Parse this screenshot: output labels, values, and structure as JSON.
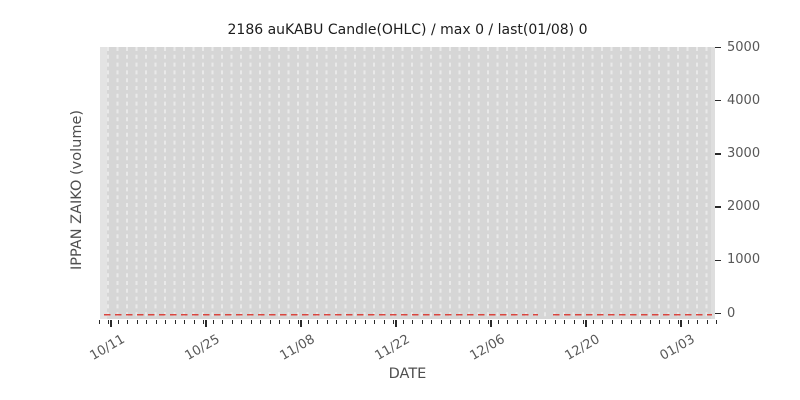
{
  "title": "2186 auKABU Candle(OHLC) / max 0 / last(01/08) 0",
  "axes": {
    "x_label": "DATE",
    "y_label": "IPPAN ZAIKO (volume)",
    "x_tick_labels": [
      "10/11",
      "10/25",
      "11/08",
      "11/22",
      "12/06",
      "12/20",
      "01/03"
    ],
    "y_tick_labels": [
      "0",
      "1000",
      "2000",
      "3000",
      "4000",
      "5000"
    ]
  },
  "chart_data": {
    "type": "bar",
    "subtype": "volume-under-candlestick",
    "title": "2186 auKABU Candle(OHLC) / max 0 / last(01/08) 0",
    "xlabel": "DATE",
    "ylabel": "IPPAN ZAIKO (volume)",
    "categories": [
      "10/11",
      "10/25",
      "11/08",
      "11/22",
      "12/06",
      "12/20",
      "01/03"
    ],
    "series": [
      {
        "name": "IPPAN ZAIKO (volume)",
        "values": [
          0,
          0,
          0,
          0,
          0,
          0,
          0
        ],
        "note": "volume is 0 for every daily data point across the whole date range; rendered as a flat red dashed line at y=0 with a short data gap between 12/06 and 12/20"
      }
    ],
    "max": 0,
    "last": {
      "date": "01/08",
      "value": 0
    },
    "ylim": [
      0,
      5000
    ],
    "y_tick_step": 1000,
    "grid": "vertical white dashed lines, one per trading day",
    "legend": "none"
  },
  "colors": {
    "figure_bg": "#ffffff",
    "plot_bg": "#d6d6d6",
    "plot_bg_edge": "#e3e3e3",
    "gridline": "#e9e9e9",
    "zero_line": "#d9453e",
    "tick_mark": "#2a2a2a",
    "tick_text": "#585858",
    "title_text": "#1c1c1c"
  }
}
